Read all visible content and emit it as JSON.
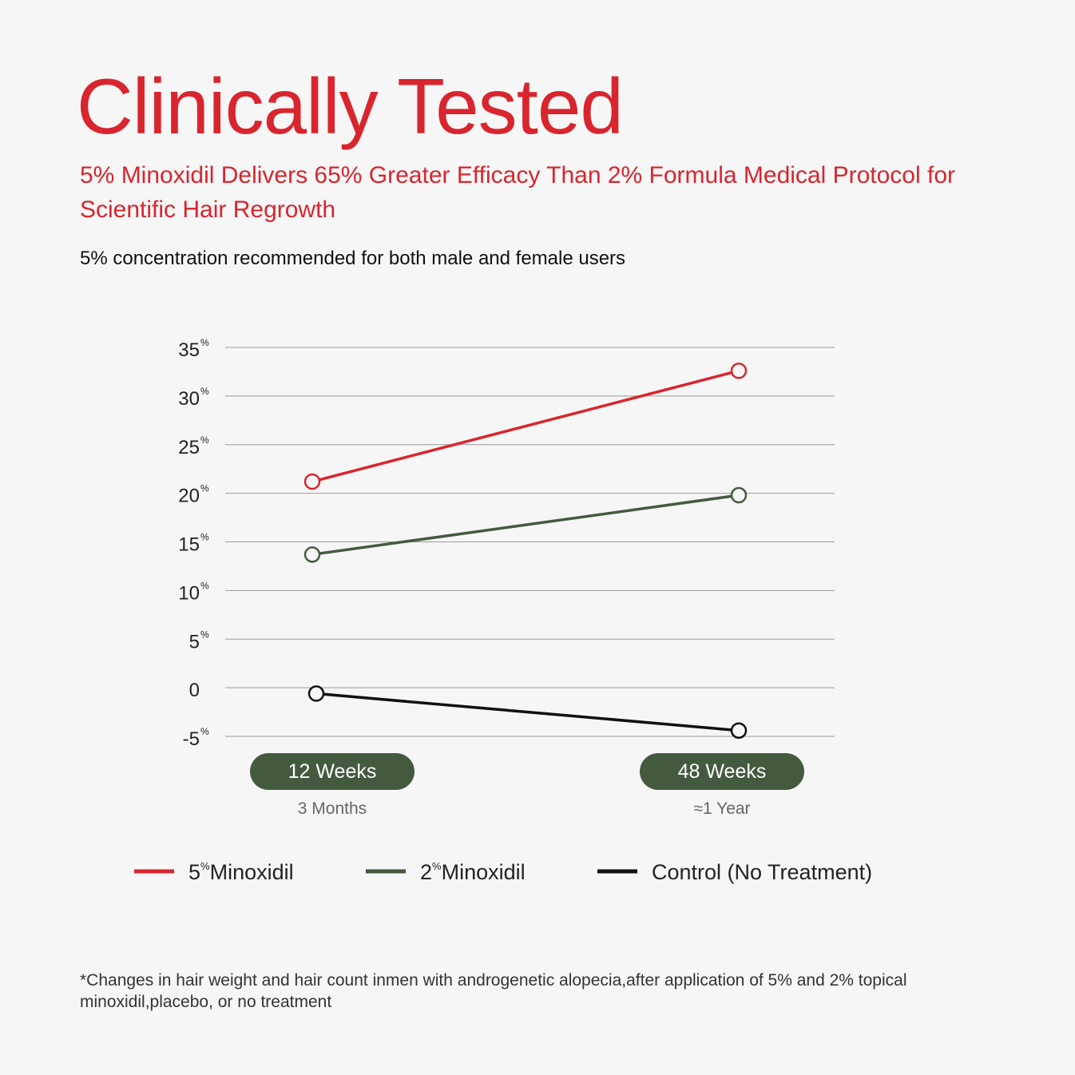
{
  "header": {
    "title": "Clinically Tested",
    "subtitle": "5% Minoxidil Delivers 65% Greater Efficacy Than 2% Formula Medical Protocol for Scientific Hair Regrowth",
    "note": "5% concentration recommended for both male and female users"
  },
  "chart_data": {
    "type": "line",
    "x": [
      {
        "label": "12 Weeks",
        "sublabel": "3 Months"
      },
      {
        "label": "48 Weeks",
        "sublabel": "≈1 Year"
      }
    ],
    "yticks": [
      {
        "value": 35,
        "label": "35",
        "unit": "%"
      },
      {
        "value": 30,
        "label": "30",
        "unit": "%"
      },
      {
        "value": 25,
        "label": "25",
        "unit": "%"
      },
      {
        "value": 20,
        "label": "20",
        "unit": "%"
      },
      {
        "value": 15,
        "label": "15",
        "unit": "%"
      },
      {
        "value": 10,
        "label": "10",
        "unit": "%"
      },
      {
        "value": 5,
        "label": "5",
        "unit": "%"
      },
      {
        "value": 0,
        "label": "0",
        "unit": ""
      },
      {
        "value": -5,
        "label": "-5",
        "unit": "%"
      }
    ],
    "ylim": [
      -5,
      35
    ],
    "grid": true,
    "legend_position": "bottom",
    "series": [
      {
        "name": "Minoxidil",
        "prefix": "5",
        "unit": "%",
        "color": "#d9252e",
        "values": [
          21.2,
          32.6
        ]
      },
      {
        "name": "Minoxidil",
        "prefix": "2",
        "unit": "%",
        "color": "#445a3f",
        "values": [
          13.7,
          19.8
        ]
      },
      {
        "name": "Control (No Treatment)",
        "prefix": "",
        "unit": "",
        "color": "#111111",
        "values": [
          -0.6,
          -4.4
        ]
      }
    ],
    "pill_color": "#445a3f"
  },
  "footnote": "*Changes in hair weight and hair count inmen with androgenetic alopecia,after application of 5% and 2% topical minoxidil,placebo, or no treatment"
}
